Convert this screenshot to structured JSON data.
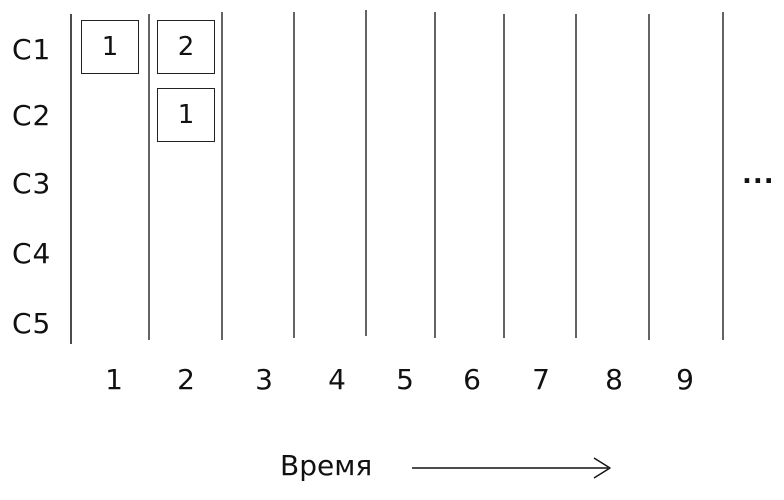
{
  "rows": [
    {
      "label": "C1"
    },
    {
      "label": "C2"
    },
    {
      "label": "C3"
    },
    {
      "label": "C4"
    },
    {
      "label": "C5"
    }
  ],
  "columns": [
    {
      "label": "1"
    },
    {
      "label": "2"
    },
    {
      "label": "3"
    },
    {
      "label": "4"
    },
    {
      "label": "5"
    },
    {
      "label": "6"
    },
    {
      "label": "7"
    },
    {
      "label": "8"
    },
    {
      "label": "9"
    }
  ],
  "cells": [
    {
      "row": "C1",
      "column": "1",
      "value": "1"
    },
    {
      "row": "C1",
      "column": "2",
      "value": "2"
    },
    {
      "row": "C2",
      "column": "2",
      "value": "1"
    }
  ],
  "ellipsis": "...",
  "axis_title": "Время"
}
